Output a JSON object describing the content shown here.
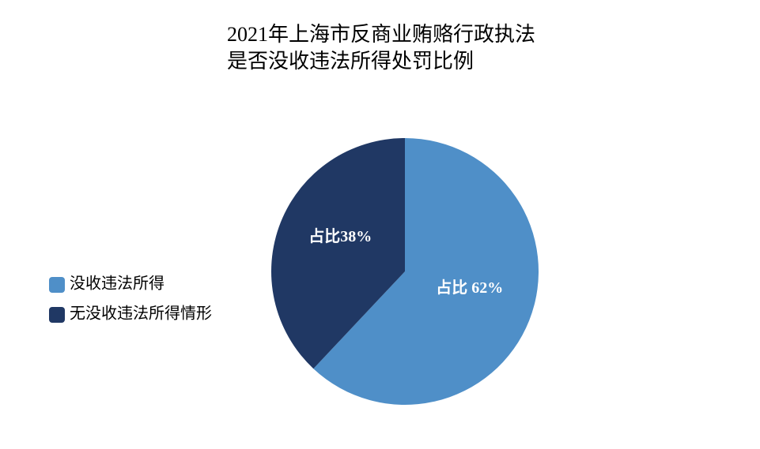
{
  "chart_data": {
    "type": "pie",
    "title": [
      "2021年上海市反商业贿赂行政执法",
      "是否没收违法所得处罚比例"
    ],
    "categories": [
      "没收违法所得",
      "无没收违法所得情形"
    ],
    "values": [
      62,
      38
    ],
    "value_labels": [
      "占比 62%",
      "占比38%"
    ],
    "colors": [
      "#4f8fc8",
      "#203864"
    ],
    "legend": "left"
  }
}
